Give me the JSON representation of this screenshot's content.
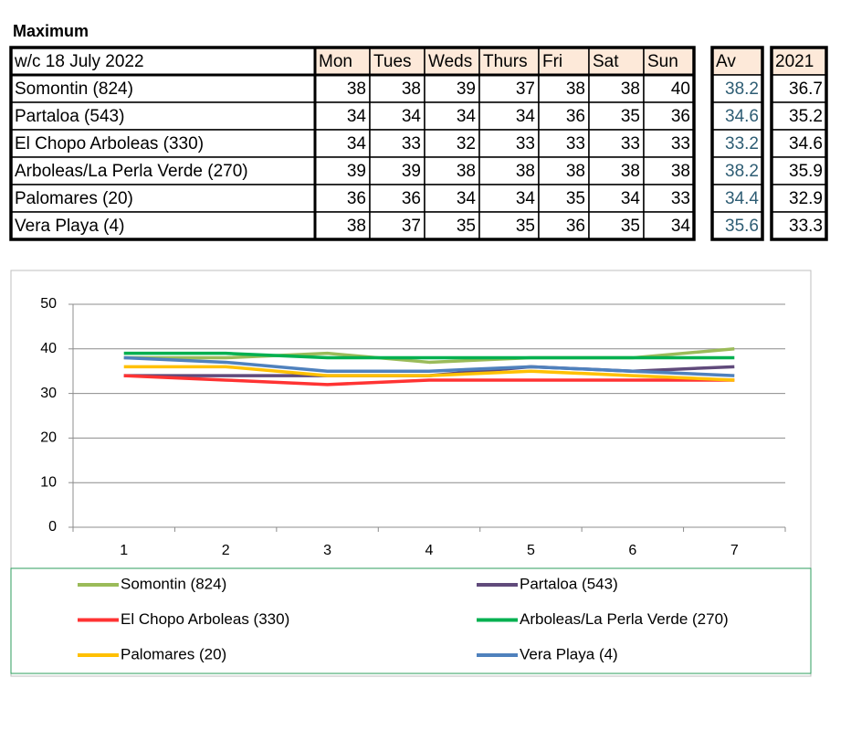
{
  "title": "Maximum",
  "table": {
    "header": [
      "w/c 18 July 2022",
      "Mon",
      "Tues",
      "Weds",
      "Thurs",
      "Fri",
      "Sat",
      "Sun",
      "Av",
      "2021"
    ],
    "rows": [
      [
        "Somontin (824)",
        38,
        38,
        39,
        37,
        38,
        38,
        40,
        38.2,
        36.7
      ],
      [
        "Partaloa (543)",
        34,
        34,
        34,
        34,
        36,
        35,
        36,
        34.6,
        35.2
      ],
      [
        "El Chopo  Arboleas (330)",
        34,
        33,
        32,
        33,
        33,
        33,
        33,
        33.2,
        34.6
      ],
      [
        "Arboleas/La Perla Verde (270)",
        39,
        39,
        38,
        38,
        38,
        38,
        38,
        38.2,
        35.9
      ],
      [
        "Palomares (20)",
        36,
        36,
        34,
        34,
        35,
        34,
        33,
        34.4,
        32.9
      ],
      [
        "Vera Playa (4)",
        38,
        37,
        35,
        35,
        36,
        35,
        34,
        35.6,
        33.3
      ]
    ]
  },
  "chart_data": {
    "type": "line",
    "categories": [
      "1",
      "2",
      "3",
      "4",
      "5",
      "6",
      "7"
    ],
    "series": [
      {
        "name": "Somontin (824)",
        "color": "#9bbb59",
        "values": [
          38,
          38,
          39,
          37,
          38,
          38,
          40
        ]
      },
      {
        "name": "Partaloa (543)",
        "color": "#604a7b",
        "values": [
          34,
          34,
          34,
          34,
          36,
          35,
          36
        ]
      },
      {
        "name": "El Chopo  Arboleas (330)",
        "color": "#ff3333",
        "values": [
          34,
          33,
          32,
          33,
          33,
          33,
          33
        ]
      },
      {
        "name": "Arboleas/La Perla Verde (270)",
        "color": "#00b050",
        "values": [
          39,
          39,
          38,
          38,
          38,
          38,
          38
        ]
      },
      {
        "name": "Palomares (20)",
        "color": "#ffc000",
        "values": [
          36,
          36,
          34,
          34,
          35,
          34,
          33
        ]
      },
      {
        "name": "Vera Playa (4)",
        "color": "#4f81bd",
        "values": [
          38,
          37,
          35,
          35,
          36,
          35,
          34
        ]
      }
    ],
    "ylim": [
      0,
      50
    ],
    "yticks": [
      0,
      10,
      20,
      30,
      40,
      50
    ],
    "grid": true,
    "legend": "bottom"
  }
}
